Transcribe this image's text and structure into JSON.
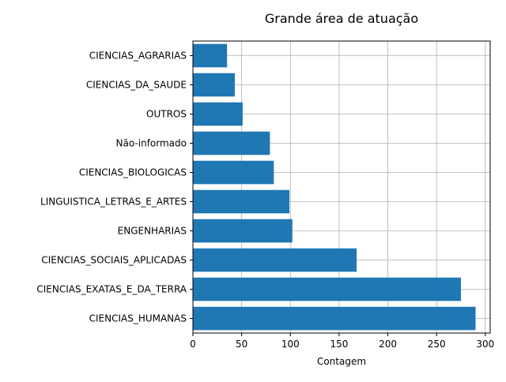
{
  "chart_data": {
    "type": "bar",
    "orientation": "horizontal",
    "title": "Grande área de atuação",
    "xlabel": "Contagem",
    "ylabel": "",
    "categories": [
      "CIENCIAS_HUMANAS",
      "CIENCIAS_EXATAS_E_DA_TERRA",
      "CIENCIAS_SOCIAIS_APLICADAS",
      "ENGENHARIAS",
      "LINGUISTICA_LETRAS_E_ARTES",
      "CIENCIAS_BIOLOGICAS",
      "Não-informado",
      "OUTROS",
      "CIENCIAS_DA_SAUDE",
      "CIENCIAS_AGRARIAS"
    ],
    "values": [
      290,
      275,
      168,
      102,
      99,
      83,
      79,
      51,
      43,
      35
    ],
    "xlim": [
      0,
      305
    ],
    "xticks": [
      0,
      50,
      100,
      150,
      200,
      250,
      300
    ],
    "grid": true,
    "legend": "none",
    "bar_color": "#1f77b4"
  }
}
